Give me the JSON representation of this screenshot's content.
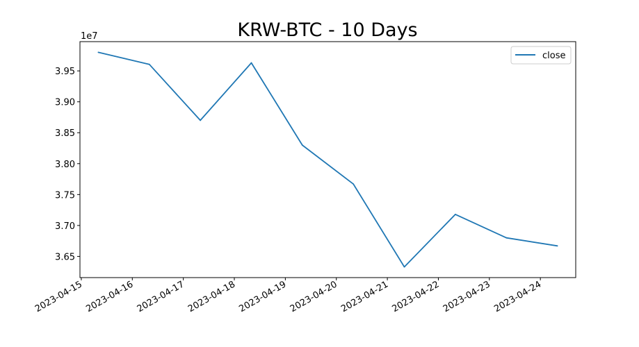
{
  "chart_data": {
    "type": "line",
    "title": "KRW-BTC - 10 Days",
    "xlabel": "",
    "ylabel": "",
    "y_offset_label": "1e7",
    "y_multiplier": 10000000,
    "x": [
      "2023-04-15 08:00",
      "2023-04-16 08:00",
      "2023-04-17 08:00",
      "2023-04-18 08:00",
      "2023-04-19 08:00",
      "2023-04-20 08:00",
      "2023-04-21 08:00",
      "2023-04-22 08:00",
      "2023-04-23 08:00",
      "2023-04-24 08:00"
    ],
    "series": [
      {
        "name": "close",
        "color": "#1f77b4",
        "values": [
          39800000,
          39606000,
          38700000,
          39630000,
          38300000,
          37670000,
          36330000,
          37180000,
          36800000,
          36670000
        ]
      }
    ],
    "x_ticks": [
      "2023-04-15",
      "2023-04-16",
      "2023-04-17",
      "2023-04-18",
      "2023-04-19",
      "2023-04-20",
      "2023-04-21",
      "2023-04-22",
      "2023-04-23",
      "2023-04-24"
    ],
    "y_ticks": [
      3.65,
      3.7,
      3.75,
      3.8,
      3.85,
      3.9,
      3.95
    ],
    "y_tick_labels": [
      "3.65",
      "3.70",
      "3.75",
      "3.80",
      "3.85",
      "3.90",
      "3.95"
    ],
    "xlim": [
      "2023-04-14 23:22",
      "2023-04-24 16:38"
    ],
    "ylim": [
      3.6157,
      3.9973
    ],
    "grid": false,
    "legend_position": "upper right"
  }
}
